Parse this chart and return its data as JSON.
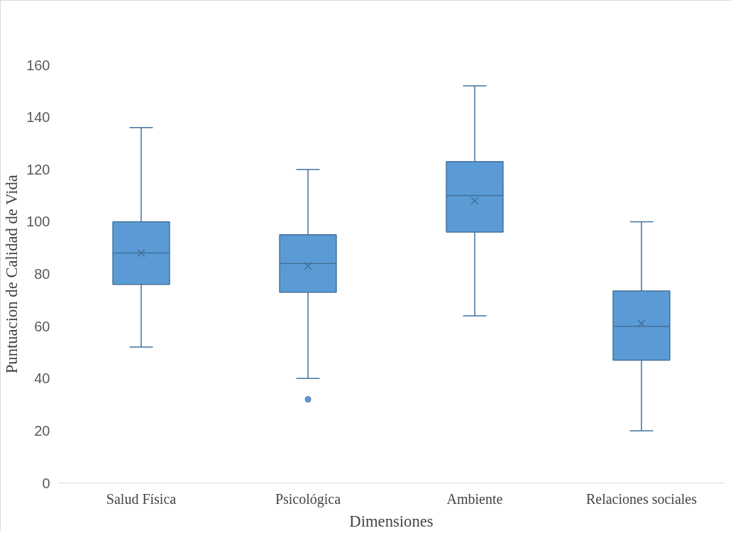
{
  "chart_data": {
    "type": "box",
    "xlabel": "Dimensiones",
    "ylabel": "Puntuacion de Calidad de Vida",
    "categories": [
      "Salud Física",
      "Psicológica",
      "Ambiente",
      "Relaciones sociales"
    ],
    "color": "#5b9bd5",
    "boxes": [
      {
        "low": 52,
        "q1": 76,
        "median": 88,
        "q3": 100,
        "high": 136,
        "mean": 88
      },
      {
        "low": 40,
        "q1": 73,
        "median": 84,
        "q3": 95,
        "high": 120,
        "mean": 83,
        "outliers": [
          32
        ]
      },
      {
        "low": 64,
        "q1": 96,
        "median": 110,
        "q3": 123,
        "high": 152,
        "mean": 108
      },
      {
        "low": 20,
        "q1": 47,
        "median": 60,
        "q3": 73.5,
        "high": 100,
        "mean": 61
      }
    ],
    "ylim": [
      0,
      160
    ],
    "yticks": [
      0,
      20,
      40,
      60,
      80,
      100,
      120,
      140,
      160
    ],
    "grid": false
  }
}
